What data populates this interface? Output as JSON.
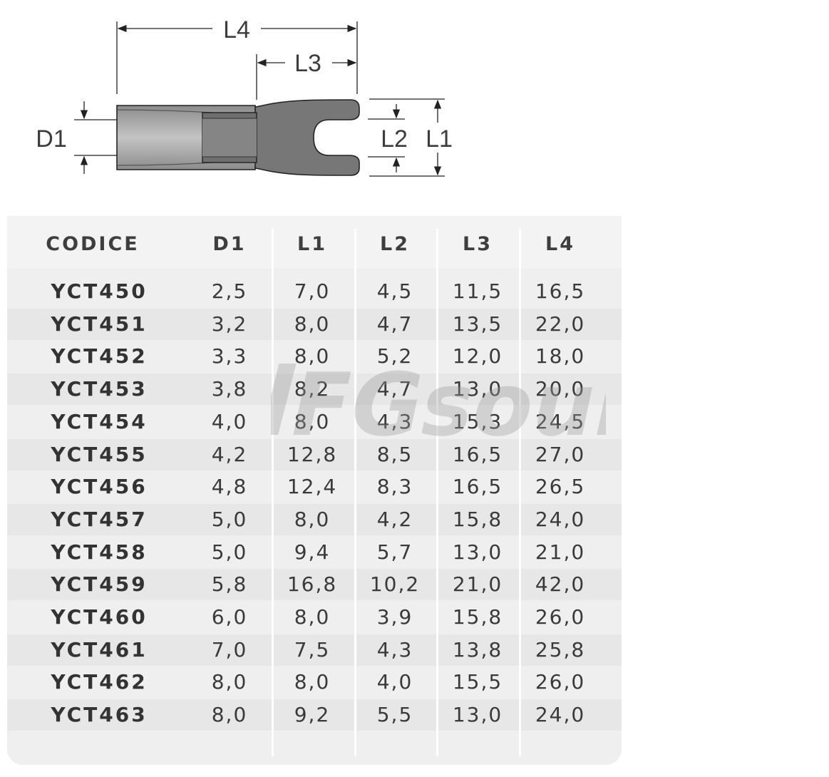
{
  "diagram": {
    "labels": {
      "l4": "L4",
      "l3": "L3",
      "d1": "D1",
      "l2": "L2",
      "l1": "L1"
    },
    "colors": {
      "body": "#7a7a7a",
      "sleeve": "#9a9a9a",
      "insulation_light": "#c9c9c9",
      "line": "#222222"
    }
  },
  "table": {
    "headers": [
      "CODICE",
      "D1",
      "L1",
      "L2",
      "L3",
      "L4"
    ],
    "rows": [
      [
        "YCT450",
        "2,5",
        "7,0",
        "4,5",
        "11,5",
        "16,5"
      ],
      [
        "YCT451",
        "3,2",
        "8,0",
        "4,7",
        "13,5",
        "22,0"
      ],
      [
        "YCT452",
        "3,3",
        "8,0",
        "5,2",
        "12,0",
        "18,0"
      ],
      [
        "YCT453",
        "3,8",
        "8,2",
        "4,7",
        "13,0",
        "20,0"
      ],
      [
        "YCT454",
        "4,0",
        "8,0",
        "4,3",
        "15,3",
        "24,5"
      ],
      [
        "YCT455",
        "4,2",
        "12,8",
        "8,5",
        "16,5",
        "27,0"
      ],
      [
        "YCT456",
        "4,8",
        "12,4",
        "8,3",
        "16,5",
        "26,5"
      ],
      [
        "YCT457",
        "5,0",
        "8,0",
        "4,2",
        "15,8",
        "24,0"
      ],
      [
        "YCT458",
        "5,0",
        "9,4",
        "5,7",
        "13,0",
        "21,0"
      ],
      [
        "YCT459",
        "5,8",
        "16,8",
        "10,2",
        "21,0",
        "42,0"
      ],
      [
        "YCT460",
        "6,0",
        "8,0",
        "3,9",
        "15,8",
        "26,0"
      ],
      [
        "YCT461",
        "7,0",
        "7,5",
        "4,3",
        "13,8",
        "25,8"
      ],
      [
        "YCT462",
        "8,0",
        "8,0",
        "4,0",
        "15,5",
        "26,0"
      ],
      [
        "YCT463",
        "8,0",
        "9,2",
        "5,5",
        "13,0",
        "24,0"
      ]
    ],
    "colors": {
      "panel": "#efefef",
      "row_alt": "#e7e7e7",
      "divider": "#ffffff",
      "text": "#3a3a3a"
    }
  },
  "watermark": {
    "text": "FGsound",
    "color": "#9a9a9a"
  }
}
